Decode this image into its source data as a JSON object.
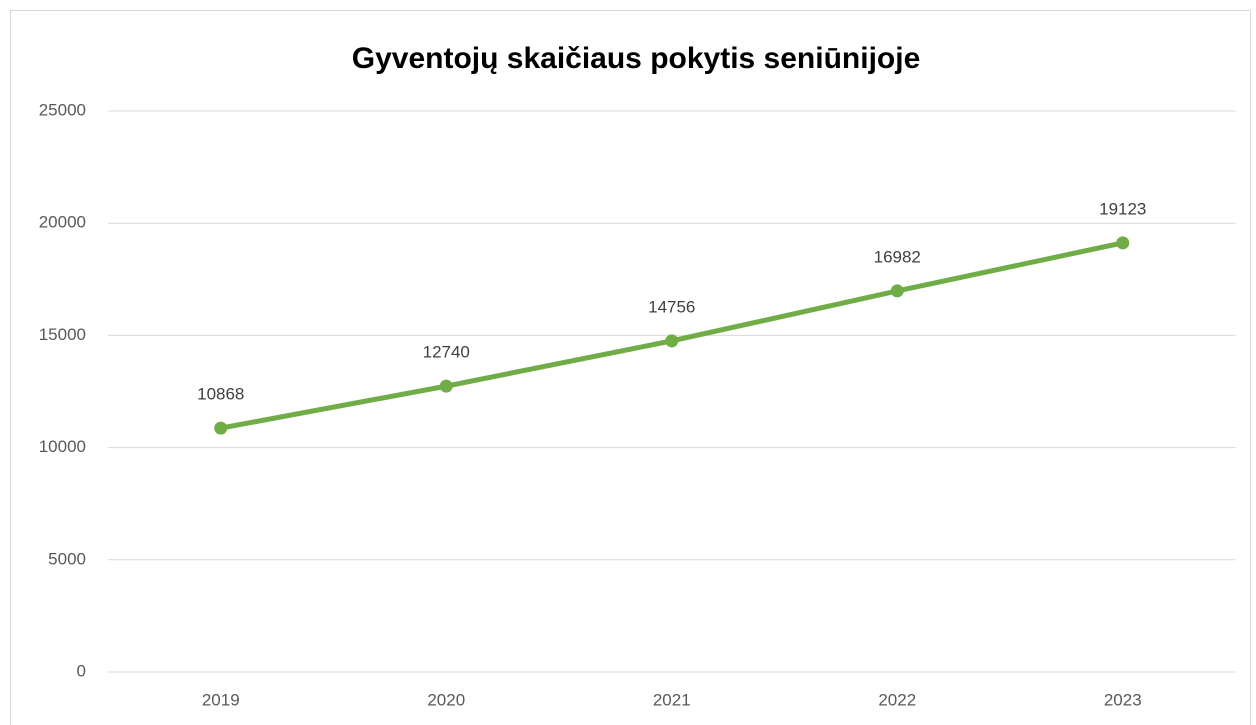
{
  "chart_data": {
    "type": "line",
    "title": "Gyventojų skaičiaus pokytis seniūnijoje",
    "categories": [
      "2019",
      "2020",
      "2021",
      "2022",
      "2023"
    ],
    "values": [
      10868,
      12740,
      14756,
      16982,
      19123
    ],
    "color": "#70ad47",
    "ylim": [
      0,
      25000
    ],
    "yticks": [
      0,
      5000,
      10000,
      15000,
      20000,
      25000
    ],
    "grid": true
  }
}
